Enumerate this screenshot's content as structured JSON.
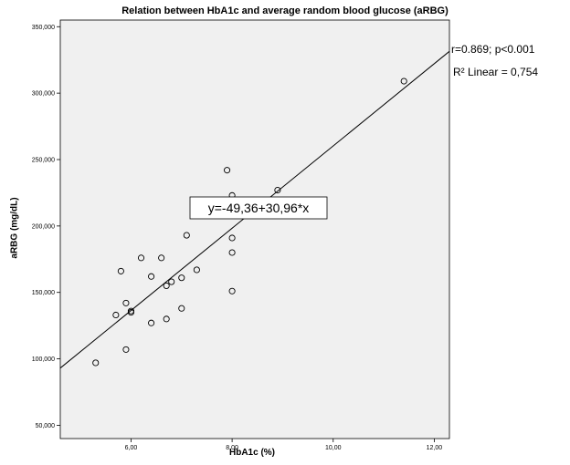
{
  "chart_data": {
    "type": "scatter",
    "title": "Relation between HbA1c and average random blood glucose (aRBG)",
    "xlabel": "HbA1c (%)",
    "ylabel": "aRBG (mg/dL)",
    "xlim": [
      4.6,
      12.3
    ],
    "ylim": [
      40,
      355
    ],
    "x_ticks": [
      6,
      8,
      10,
      12
    ],
    "x_tick_labels": [
      "6,00",
      "8,00",
      "10,00",
      "12,00"
    ],
    "y_ticks": [
      50,
      100,
      150,
      200,
      250,
      300,
      350
    ],
    "y_tick_labels": [
      "50,000",
      "100,000",
      "150,000",
      "200,000",
      "250,000",
      "300,000",
      "350,000"
    ],
    "grid": false,
    "points": [
      {
        "x": 5.3,
        "y": 97
      },
      {
        "x": 5.7,
        "y": 133
      },
      {
        "x": 5.8,
        "y": 166
      },
      {
        "x": 5.9,
        "y": 142
      },
      {
        "x": 5.9,
        "y": 107
      },
      {
        "x": 6.0,
        "y": 135
      },
      {
        "x": 6.0,
        "y": 136
      },
      {
        "x": 6.2,
        "y": 176
      },
      {
        "x": 6.4,
        "y": 162
      },
      {
        "x": 6.4,
        "y": 127
      },
      {
        "x": 6.6,
        "y": 176
      },
      {
        "x": 6.7,
        "y": 155
      },
      {
        "x": 6.7,
        "y": 130
      },
      {
        "x": 6.8,
        "y": 158
      },
      {
        "x": 7.0,
        "y": 161
      },
      {
        "x": 7.0,
        "y": 138
      },
      {
        "x": 7.1,
        "y": 193
      },
      {
        "x": 7.3,
        "y": 167
      },
      {
        "x": 7.9,
        "y": 242
      },
      {
        "x": 8.0,
        "y": 223
      },
      {
        "x": 8.0,
        "y": 191
      },
      {
        "x": 8.0,
        "y": 180
      },
      {
        "x": 8.0,
        "y": 151
      },
      {
        "x": 8.9,
        "y": 227
      },
      {
        "x": 11.4,
        "y": 309
      }
    ],
    "fit_line": {
      "intercept": -49.36,
      "slope": 30.96
    },
    "fit_label": "y=-49,36+30,96*x",
    "annotations": [
      "r=0.869; p<0.001",
      "R² Linear = 0,754"
    ],
    "colors": {
      "plot_background": "#f0f0f0",
      "line": "#000000",
      "marker_edge": "#000000"
    }
  }
}
